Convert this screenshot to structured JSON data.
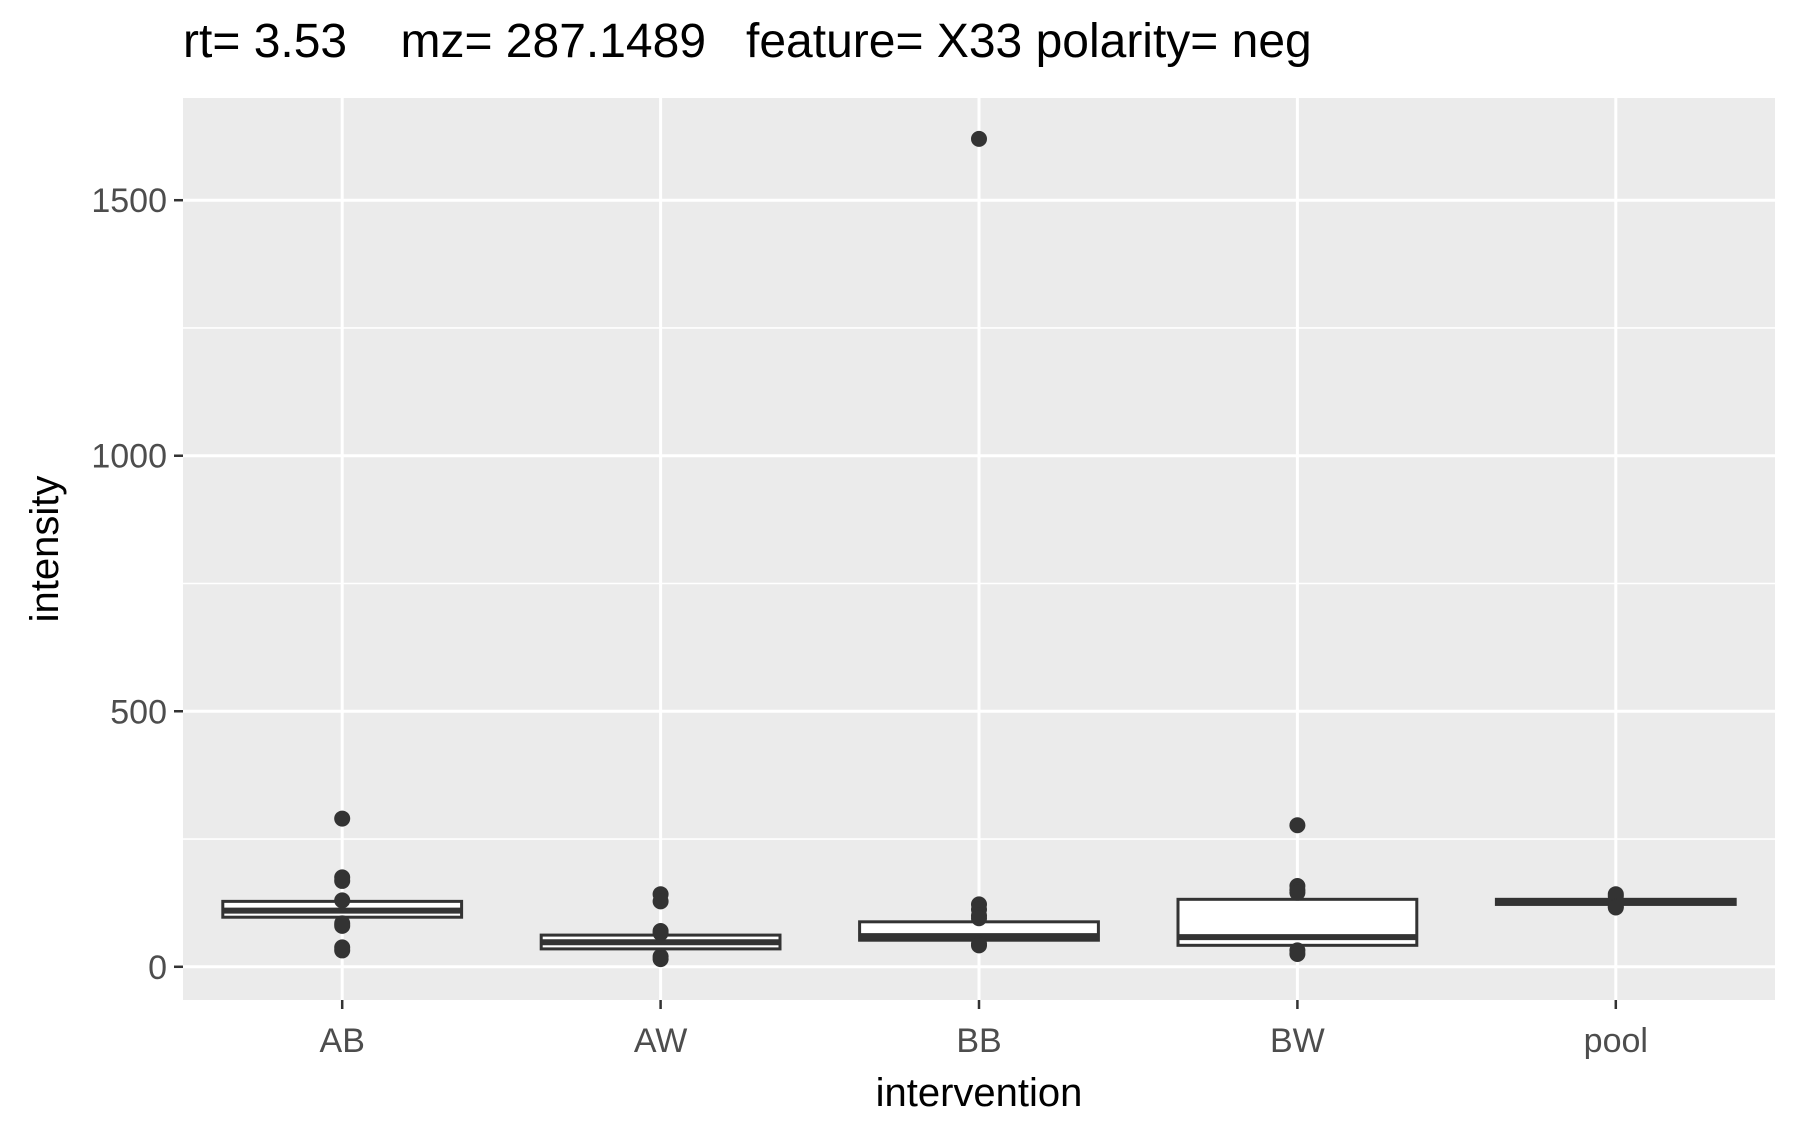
{
  "chart_data": {
    "type": "boxplot",
    "title": "rt= 3.53    mz= 287.1489   feature= X33 polarity= neg",
    "xlabel": "intervention",
    "ylabel": "intensity",
    "ylim": [
      -65,
      1700
    ],
    "yticks": [
      0,
      500,
      1000,
      1500
    ],
    "ytick_labels": [
      "0",
      "500",
      "1000",
      "1500"
    ],
    "grid": true,
    "colors": {
      "panel": "#ebebeb",
      "grid": "#ffffff",
      "box_fill": "#ffffff",
      "box_stroke": "#333333",
      "point": "#333333"
    },
    "categories": [
      "AB",
      "AW",
      "BB",
      "BW",
      "pool"
    ],
    "boxes": [
      {
        "category": "AB",
        "q1": 97,
        "median": 110,
        "q3": 128,
        "whisker_low": 90,
        "whisker_high": 133,
        "outliers": [
          290,
          175,
          168,
          130,
          85,
          80,
          38,
          32
        ]
      },
      {
        "category": "AW",
        "q1": 35,
        "median": 48,
        "q3": 62,
        "whisker_low": 28,
        "whisker_high": 65,
        "outliers": [
          142,
          128,
          70,
          66,
          20,
          15
        ]
      },
      {
        "category": "BB",
        "q1": 52,
        "median": 60,
        "q3": 88,
        "whisker_low": 48,
        "whisker_high": 92,
        "outliers": [
          1620,
          122,
          112,
          100,
          95,
          45,
          42
        ]
      },
      {
        "category": "BW",
        "q1": 42,
        "median": 58,
        "q3": 132,
        "whisker_low": 38,
        "whisker_high": 140,
        "outliers": [
          277,
          158,
          150,
          145,
          32,
          25
        ]
      },
      {
        "category": "pool",
        "q1": 122,
        "median": 128,
        "q3": 132,
        "whisker_low": 118,
        "whisker_high": 136,
        "outliers": [
          142,
          138,
          118,
          116
        ]
      }
    ]
  }
}
